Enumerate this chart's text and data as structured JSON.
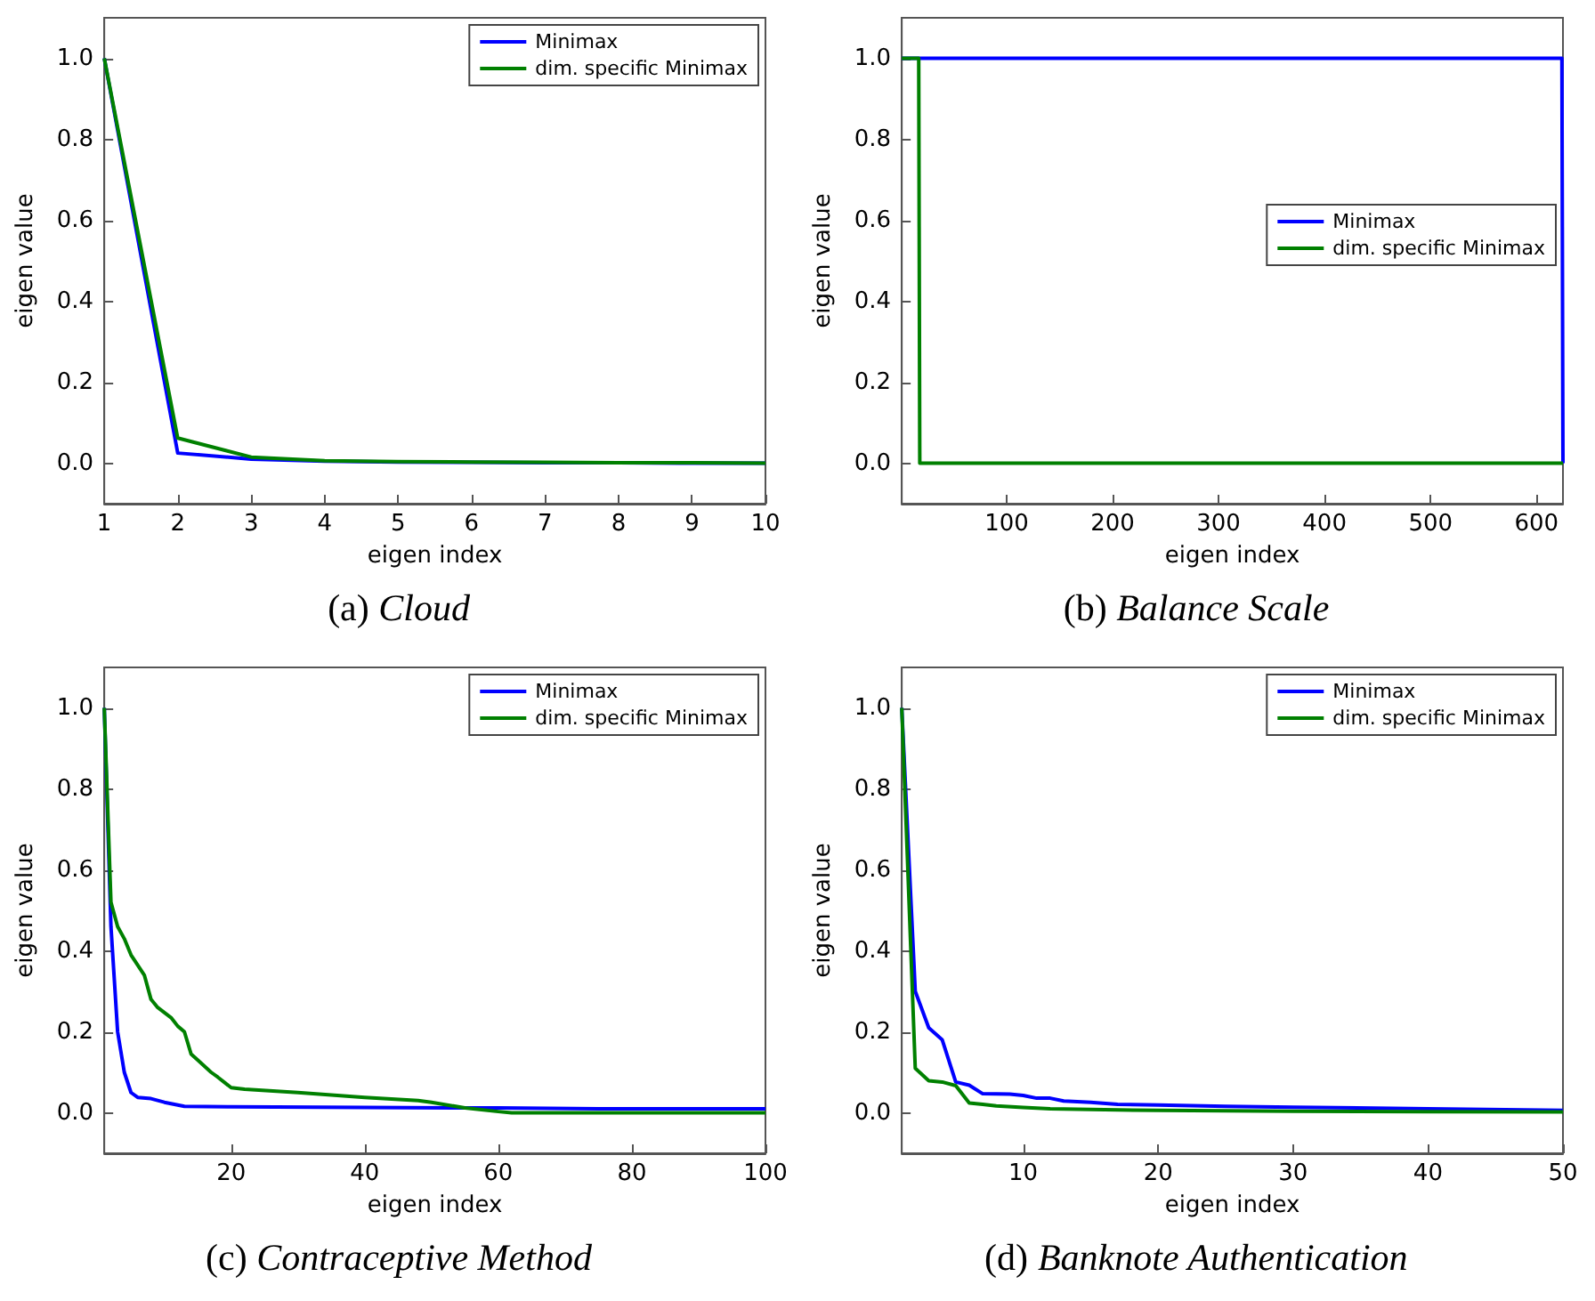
{
  "chart_data": [
    {
      "type": "line",
      "title": "(a) Cloud",
      "xlabel": "eigen index",
      "ylabel": "eigen value",
      "xlim": [
        1,
        10
      ],
      "xticks": [
        1,
        2,
        3,
        4,
        5,
        6,
        7,
        8,
        9,
        10
      ],
      "ylim": [
        -0.1,
        1.1
      ],
      "yticks": [
        {
          "value": 0,
          "label": "0.0"
        },
        {
          "value": 0.2,
          "label": "0.2"
        },
        {
          "value": 0.4,
          "label": "0.4"
        },
        {
          "value": 0.6,
          "label": "0.6"
        },
        {
          "value": 0.8,
          "label": "0.8"
        },
        {
          "value": 1,
          "label": "1.0"
        }
      ],
      "grid": false,
      "legend": "top right",
      "marker": "none",
      "line_style": "solid",
      "series": [
        {
          "name": "Minimax",
          "color": "#0000ff",
          "x": [
            1,
            2,
            3,
            4,
            5,
            6,
            7,
            8,
            9,
            10
          ],
          "values": [
            1.0,
            0.025,
            0.01,
            0.005,
            0.003,
            0.002,
            0.001,
            0.001,
            0,
            0
          ]
        },
        {
          "name": "dim. specific Minimax",
          "color": "#008000",
          "x": [
            1,
            2,
            3,
            4,
            5,
            6,
            7,
            8,
            9,
            10
          ],
          "values": [
            1.0,
            0.062,
            0.015,
            0.006,
            0.004,
            0.003,
            0.002,
            0.001,
            0.001,
            0
          ]
        }
      ]
    },
    {
      "type": "line",
      "title": "(b) Balance Scale",
      "xlabel": "eigen index",
      "ylabel": "eigen value",
      "xlim": [
        1,
        625
      ],
      "xticks": [
        100,
        200,
        300,
        400,
        500,
        600
      ],
      "ylim": [
        -0.1,
        1.1
      ],
      "yticks": [
        {
          "value": 0,
          "label": "0.0"
        },
        {
          "value": 0.2,
          "label": "0.2"
        },
        {
          "value": 0.4,
          "label": "0.4"
        },
        {
          "value": 0.6,
          "label": "0.6"
        },
        {
          "value": 0.8,
          "label": "0.8"
        },
        {
          "value": 1,
          "label": "1.0"
        }
      ],
      "grid": false,
      "legend": "right",
      "marker": "none",
      "line_style": "solid",
      "series": [
        {
          "name": "Minimax",
          "color": "#0000ff",
          "x": [
            1,
            624,
            625
          ],
          "values": [
            1,
            1,
            0
          ]
        },
        {
          "name": "dim. specific Minimax",
          "color": "#008000",
          "x": [
            1,
            17,
            18,
            625
          ],
          "values": [
            1,
            1,
            0,
            0
          ]
        }
      ]
    },
    {
      "type": "line",
      "title": "(c) Contraceptive Method",
      "xlabel": "eigen index",
      "ylabel": "eigen value",
      "xlim": [
        1,
        100
      ],
      "xticks": [
        20,
        40,
        60,
        80,
        100
      ],
      "ylim": [
        -0.1,
        1.1
      ],
      "yticks": [
        {
          "value": 0,
          "label": "0.0"
        },
        {
          "value": 0.2,
          "label": "0.2"
        },
        {
          "value": 0.4,
          "label": "0.4"
        },
        {
          "value": 0.6,
          "label": "0.6"
        },
        {
          "value": 0.8,
          "label": "0.8"
        },
        {
          "value": 1,
          "label": "1.0"
        }
      ],
      "grid": false,
      "legend": "top right",
      "marker": "none",
      "line_style": "solid",
      "series": [
        {
          "name": "Minimax",
          "color": "#0000ff",
          "x": [
            1,
            2,
            3,
            4,
            5,
            6,
            8,
            10,
            13,
            20,
            40,
            60,
            75,
            100
          ],
          "values": [
            1.0,
            0.46,
            0.2,
            0.1,
            0.05,
            0.038,
            0.035,
            0.026,
            0.016,
            0.015,
            0.013,
            0.012,
            0.01,
            0.01
          ]
        },
        {
          "name": "dim. specific Minimax",
          "color": "#008000",
          "x": [
            1,
            2,
            3,
            4,
            5,
            7,
            8,
            9,
            11,
            12,
            13,
            14,
            15,
            17,
            18,
            20,
            22,
            30,
            40,
            48,
            50,
            55,
            60,
            62,
            100
          ],
          "values": [
            1.0,
            0.52,
            0.46,
            0.43,
            0.39,
            0.34,
            0.28,
            0.26,
            0.235,
            0.214,
            0.2,
            0.145,
            0.13,
            0.1,
            0.088,
            0.062,
            0.058,
            0.05,
            0.038,
            0.03,
            0.026,
            0.012,
            0.003,
            0,
            0
          ]
        }
      ]
    },
    {
      "type": "line",
      "title": "(d) Banknote Authentication",
      "xlabel": "eigen index",
      "ylabel": "eigen value",
      "xlim": [
        1,
        50
      ],
      "xticks": [
        10,
        20,
        30,
        40,
        50
      ],
      "ylim": [
        -0.1,
        1.1
      ],
      "yticks": [
        {
          "value": 0,
          "label": "0.0"
        },
        {
          "value": 0.2,
          "label": "0.2"
        },
        {
          "value": 0.4,
          "label": "0.4"
        },
        {
          "value": 0.6,
          "label": "0.6"
        },
        {
          "value": 0.8,
          "label": "0.8"
        },
        {
          "value": 1,
          "label": "1.0"
        }
      ],
      "grid": false,
      "legend": "top right",
      "marker": "none",
      "line_style": "solid",
      "series": [
        {
          "name": "Minimax",
          "color": "#0000ff",
          "x": [
            1,
            2,
            3,
            4,
            5,
            6,
            7,
            9,
            10,
            11,
            12,
            13,
            15,
            17,
            20,
            25,
            30,
            40,
            50
          ],
          "values": [
            1.0,
            0.3,
            0.21,
            0.18,
            0.076,
            0.068,
            0.047,
            0.046,
            0.043,
            0.036,
            0.036,
            0.029,
            0.026,
            0.021,
            0.019,
            0.016,
            0.014,
            0.01,
            0.006
          ]
        },
        {
          "name": "dim. specific Minimax",
          "color": "#008000",
          "x": [
            1,
            2,
            3,
            4,
            5,
            6,
            7,
            8,
            10,
            12,
            15,
            20,
            30,
            40,
            50
          ],
          "values": [
            1.0,
            0.11,
            0.079,
            0.076,
            0.067,
            0.024,
            0.021,
            0.017,
            0.013,
            0.01,
            0.008,
            0.006,
            0.004,
            0.003,
            0.002
          ]
        }
      ]
    }
  ]
}
